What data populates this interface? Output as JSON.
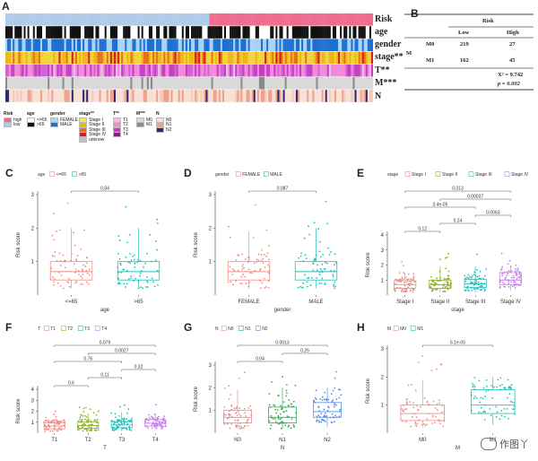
{
  "panel_letters": {
    "A": "A",
    "B": "B",
    "C": "C",
    "D": "D",
    "E": "E",
    "F": "F",
    "G": "G",
    "H": "H"
  },
  "panelA": {
    "rows": [
      {
        "label": "Risk",
        "colors": [
          "#aecbe8",
          "#f06b8e"
        ]
      },
      {
        "label": "age",
        "colors": [
          "#ffffff",
          "#111111"
        ]
      },
      {
        "label": "gender",
        "colors": [
          "#a9d3f5",
          "#1f6fd1"
        ]
      },
      {
        "label": "stage**",
        "colors": [
          "#f3d33a",
          "#f0b515",
          "#e8701a",
          "#d81f1f"
        ]
      },
      {
        "label": "T**",
        "colors": [
          "#f08ad8",
          "#c43ec4",
          "#d064d0",
          "#e9c0e9"
        ]
      },
      {
        "label": "M***",
        "colors": [
          "#d9d9d9",
          "#8a8a8a"
        ]
      },
      {
        "label": "N",
        "colors": [
          "#f7e0d6",
          "#f1a08a",
          "#2a2a70",
          "#f5c9b8"
        ]
      }
    ],
    "legend": [
      {
        "title": "Risk",
        "items": [
          {
            "label": "high",
            "color": "#f06b8e"
          },
          {
            "label": "low",
            "color": "#aecbe8"
          }
        ]
      },
      {
        "title": "age",
        "items": [
          {
            "label": "<=65",
            "color": "#ffffff"
          },
          {
            "label": ">65",
            "color": "#111111"
          }
        ]
      },
      {
        "title": "gender",
        "items": [
          {
            "label": "FEMALE",
            "color": "#a9d3f5"
          },
          {
            "label": "MALE",
            "color": "#1f6fd1"
          }
        ]
      },
      {
        "title": "stage**",
        "items": [
          {
            "label": "Stage I",
            "color": "#f7e56a"
          },
          {
            "label": "Stage II",
            "color": "#f0b515"
          },
          {
            "label": "Stage III",
            "color": "#e8701a"
          },
          {
            "label": "Stage IV",
            "color": "#d81f1f"
          },
          {
            "label": "unknow",
            "color": "#c0c0c0"
          }
        ]
      },
      {
        "title": "T**",
        "items": [
          {
            "label": "T1",
            "color": "#f7b8e6"
          },
          {
            "label": "T2",
            "color": "#f08ad8"
          },
          {
            "label": "T3",
            "color": "#c43ec4"
          },
          {
            "label": "T4",
            "color": "#8a1f8a"
          }
        ]
      },
      {
        "title": "M***",
        "items": [
          {
            "label": "M0",
            "color": "#d9d9d9"
          },
          {
            "label": "M1",
            "color": "#8a8a8a"
          }
        ]
      },
      {
        "title": "N",
        "items": [
          {
            "label": "N0",
            "color": "#f7e0d6"
          },
          {
            "label": "N1",
            "color": "#f1a08a"
          },
          {
            "label": "N2",
            "color": "#2a2a70"
          }
        ]
      }
    ]
  },
  "panelB": {
    "risk_header": "Risk",
    "low_header": "Low",
    "high_header": "High",
    "row_group": "M",
    "rows": [
      {
        "label": "M0",
        "low": "219",
        "high": "27"
      },
      {
        "label": "M1",
        "low": "162",
        "high": "45"
      }
    ],
    "chi": "X² = 9.742",
    "p": "p = 0.002"
  },
  "chart_data": [
    {
      "id": "C",
      "type": "box",
      "legend_title": "age",
      "categories": [
        "<=65",
        ">65"
      ],
      "colors": [
        "#f28b82",
        "#1fbfb8"
      ],
      "xlabel": "age",
      "ylabel": "Risk score",
      "ylim": [
        0,
        3
      ],
      "yticks": [
        1,
        2,
        3
      ],
      "medians": [
        0.7,
        0.7
      ],
      "q1": [
        0.45,
        0.45
      ],
      "q3": [
        1.0,
        1.0
      ],
      "whisk_lo": [
        0.2,
        0.2
      ],
      "whisk_hi": [
        2.0,
        2.0
      ],
      "comparisons": [
        {
          "from": 0,
          "to": 1,
          "label": "0.84"
        }
      ]
    },
    {
      "id": "D",
      "type": "box",
      "legend_title": "gender",
      "categories": [
        "FEMALE",
        "MALE"
      ],
      "colors": [
        "#f28b82",
        "#1fbfb8"
      ],
      "xlabel": "gender",
      "ylabel": "Risk score",
      "ylim": [
        0,
        3
      ],
      "yticks": [
        1,
        2,
        3
      ],
      "medians": [
        0.7,
        0.7
      ],
      "q1": [
        0.45,
        0.45
      ],
      "q3": [
        1.0,
        1.0
      ],
      "whisk_lo": [
        0.2,
        0.2
      ],
      "whisk_hi": [
        1.9,
        2.0
      ],
      "comparisons": [
        {
          "from": 0,
          "to": 1,
          "label": "0.087"
        }
      ]
    },
    {
      "id": "E",
      "type": "box",
      "legend_title": "stage",
      "categories": [
        "Stage I",
        "Stage II",
        "Stage III",
        "Stage IV"
      ],
      "colors": [
        "#f28b82",
        "#8fae2a",
        "#1fbfb8",
        "#c77cf0"
      ],
      "xlabel": "stage",
      "ylabel": "Risk score",
      "ylim": [
        0,
        4
      ],
      "yticks": [
        1,
        2,
        3,
        4
      ],
      "medians": [
        0.7,
        0.7,
        0.75,
        1.0
      ],
      "q1": [
        0.45,
        0.45,
        0.5,
        0.7
      ],
      "q3": [
        0.95,
        1.0,
        1.05,
        1.5
      ],
      "whisk_lo": [
        0.2,
        0.2,
        0.2,
        0.3
      ],
      "whisk_hi": [
        1.5,
        1.9,
        1.9,
        2.0
      ],
      "comparisons": [
        {
          "from": 0,
          "to": 1,
          "label": "0.12"
        },
        {
          "from": 0,
          "to": 2,
          "label": "3.4e-05"
        },
        {
          "from": 1,
          "to": 2,
          "label": "0.24"
        },
        {
          "from": 0,
          "to": 3,
          "label": "0.013"
        },
        {
          "from": 1,
          "to": 3,
          "label": "0.00037"
        },
        {
          "from": 2,
          "to": 3,
          "label": "0.0063"
        }
      ]
    },
    {
      "id": "F",
      "type": "box",
      "legend_title": "T",
      "categories": [
        "T1",
        "T2",
        "T3",
        "T4"
      ],
      "colors": [
        "#f28b82",
        "#8fae2a",
        "#1fbfb8",
        "#c77cf0"
      ],
      "xlabel": "T",
      "ylabel": "Risk score",
      "ylim": [
        0,
        4
      ],
      "yticks": [
        1,
        2,
        3,
        4
      ],
      "medians": [
        0.65,
        0.7,
        0.75,
        0.9
      ],
      "q1": [
        0.4,
        0.45,
        0.5,
        0.65
      ],
      "q3": [
        0.95,
        1.0,
        1.05,
        1.25
      ],
      "whisk_lo": [
        0.2,
        0.2,
        0.2,
        0.3
      ],
      "whisk_hi": [
        1.2,
        1.8,
        1.9,
        1.8
      ],
      "comparisons": [
        {
          "from": 0,
          "to": 1,
          "label": "0.6"
        },
        {
          "from": 0,
          "to": 2,
          "label": "0.76"
        },
        {
          "from": 1,
          "to": 2,
          "label": "0.11"
        },
        {
          "from": 0,
          "to": 3,
          "label": "0.079"
        },
        {
          "from": 1,
          "to": 3,
          "label": "0.0027"
        },
        {
          "from": 2,
          "to": 3,
          "label": "0.32"
        }
      ]
    },
    {
      "id": "G",
      "type": "box",
      "legend_title": "N",
      "categories": [
        "N0",
        "N1",
        "N2"
      ],
      "colors": [
        "#f28b82",
        "#30b050",
        "#4f8ff0"
      ],
      "xlabel": "N",
      "ylabel": "Risk score",
      "ylim": [
        0,
        3
      ],
      "yticks": [
        1,
        2,
        3
      ],
      "medians": [
        0.7,
        0.7,
        0.95
      ],
      "q1": [
        0.45,
        0.45,
        0.7
      ],
      "q3": [
        1.0,
        1.15,
        1.35
      ],
      "whisk_lo": [
        0.2,
        0.2,
        0.3
      ],
      "whisk_hi": [
        1.9,
        2.0,
        2.0
      ],
      "comparisons": [
        {
          "from": 0,
          "to": 1,
          "label": "0.04"
        },
        {
          "from": 0,
          "to": 2,
          "label": "0.0013"
        },
        {
          "from": 1,
          "to": 2,
          "label": "0.25"
        }
      ]
    },
    {
      "id": "H",
      "type": "box",
      "legend_title": "M",
      "categories": [
        "M0",
        "M1"
      ],
      "colors": [
        "#f28b82",
        "#1fbfb8"
      ],
      "xlabel": "M",
      "ylabel": "Risk score",
      "ylim": [
        0,
        3
      ],
      "yticks": [
        1,
        2,
        3
      ],
      "medians": [
        0.7,
        1.0
      ],
      "q1": [
        0.45,
        0.7
      ],
      "q3": [
        1.0,
        1.55
      ],
      "whisk_lo": [
        0.2,
        0.3
      ],
      "whisk_hi": [
        1.9,
        2.0
      ],
      "comparisons": [
        {
          "from": 0,
          "to": 1,
          "label": "6.1e-05"
        }
      ]
    }
  ],
  "watermark": "作图丫"
}
